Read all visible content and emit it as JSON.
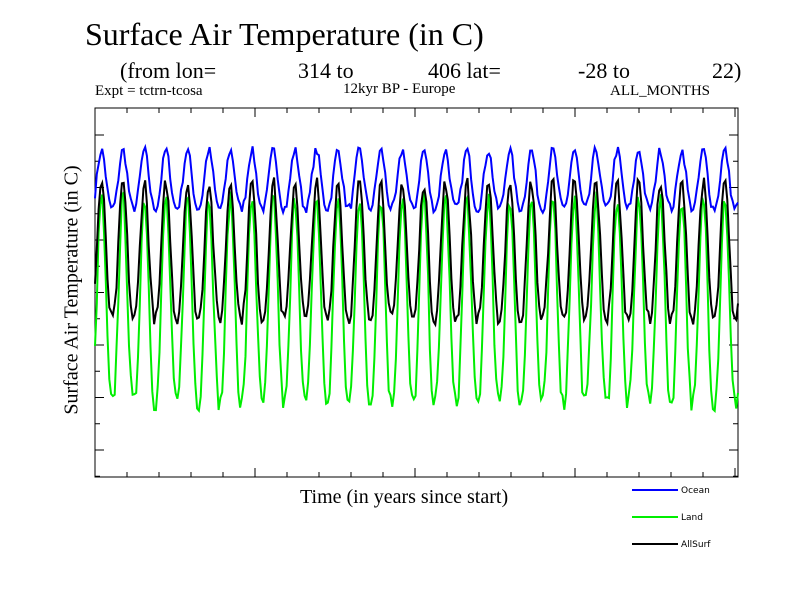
{
  "header": {
    "title": "Surface Air Temperature (in C)",
    "subtitle_parts": [
      "(from lon=",
      "314 to",
      "406 lat=",
      "-28 to",
      "22)"
    ],
    "expt": "Expt = tctrn-tcosa",
    "region": "12kyr BP - Europe",
    "months": "ALL_MONTHS"
  },
  "chart_data": {
    "type": "line",
    "title": "Surface Air Temperature (in C)",
    "xlabel": "Time (in years since start)",
    "ylabel": "Surface Air Temperature (in C)",
    "x_tick_labels": [],
    "y_tick_labels": [],
    "x_range": [
      0,
      30
    ],
    "y_range": [
      0,
      7
    ],
    "cycles": 30,
    "samples_per_cycle": 12,
    "legend_position": "bottom-right",
    "series": [
      {
        "name": "Ocean",
        "color": "#0000ff",
        "peak": 6.2,
        "trough": 5.1,
        "variability": 0.18
      },
      {
        "name": "Land",
        "color": "#00ee00",
        "peak": 5.3,
        "trough": 1.4,
        "variability": 0.35
      },
      {
        "name": "AllSurf",
        "color": "#000000",
        "peak": 5.6,
        "trough": 3.0,
        "variability": 0.25
      }
    ]
  }
}
